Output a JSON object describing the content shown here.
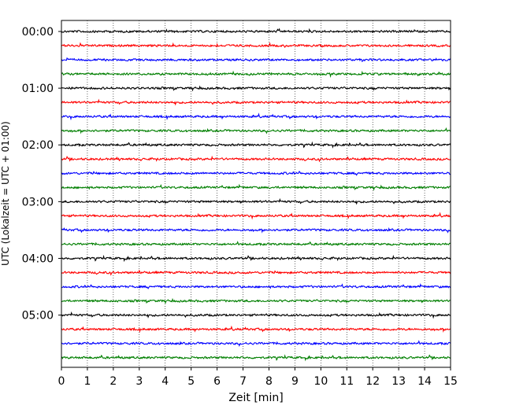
{
  "chart_data": {
    "type": "line",
    "title": "",
    "xlabel": "Zeit  [min]",
    "ylabel": "UTC (Lokalzeit = UTC + 01:00)",
    "xlim": [
      0,
      15
    ],
    "x_ticks": [
      0,
      1,
      2,
      3,
      4,
      5,
      6,
      7,
      8,
      9,
      10,
      11,
      12,
      13,
      14,
      15
    ],
    "x_tick_labels": [
      "0",
      "1",
      "2",
      "3",
      "4",
      "5",
      "6",
      "7",
      "8",
      "9",
      "10",
      "11",
      "12",
      "13",
      "14",
      "15"
    ],
    "y_tick_labels": [
      "00:00",
      "01:00",
      "02:00",
      "03:00",
      "04:00",
      "05:00"
    ],
    "trace_interval_min": 15,
    "trace_count": 24,
    "series_colors": [
      "#000000",
      "#ff0000",
      "#0000ff",
      "#007f00"
    ],
    "grid": "vertical dotted at each minute",
    "legend": "none"
  }
}
